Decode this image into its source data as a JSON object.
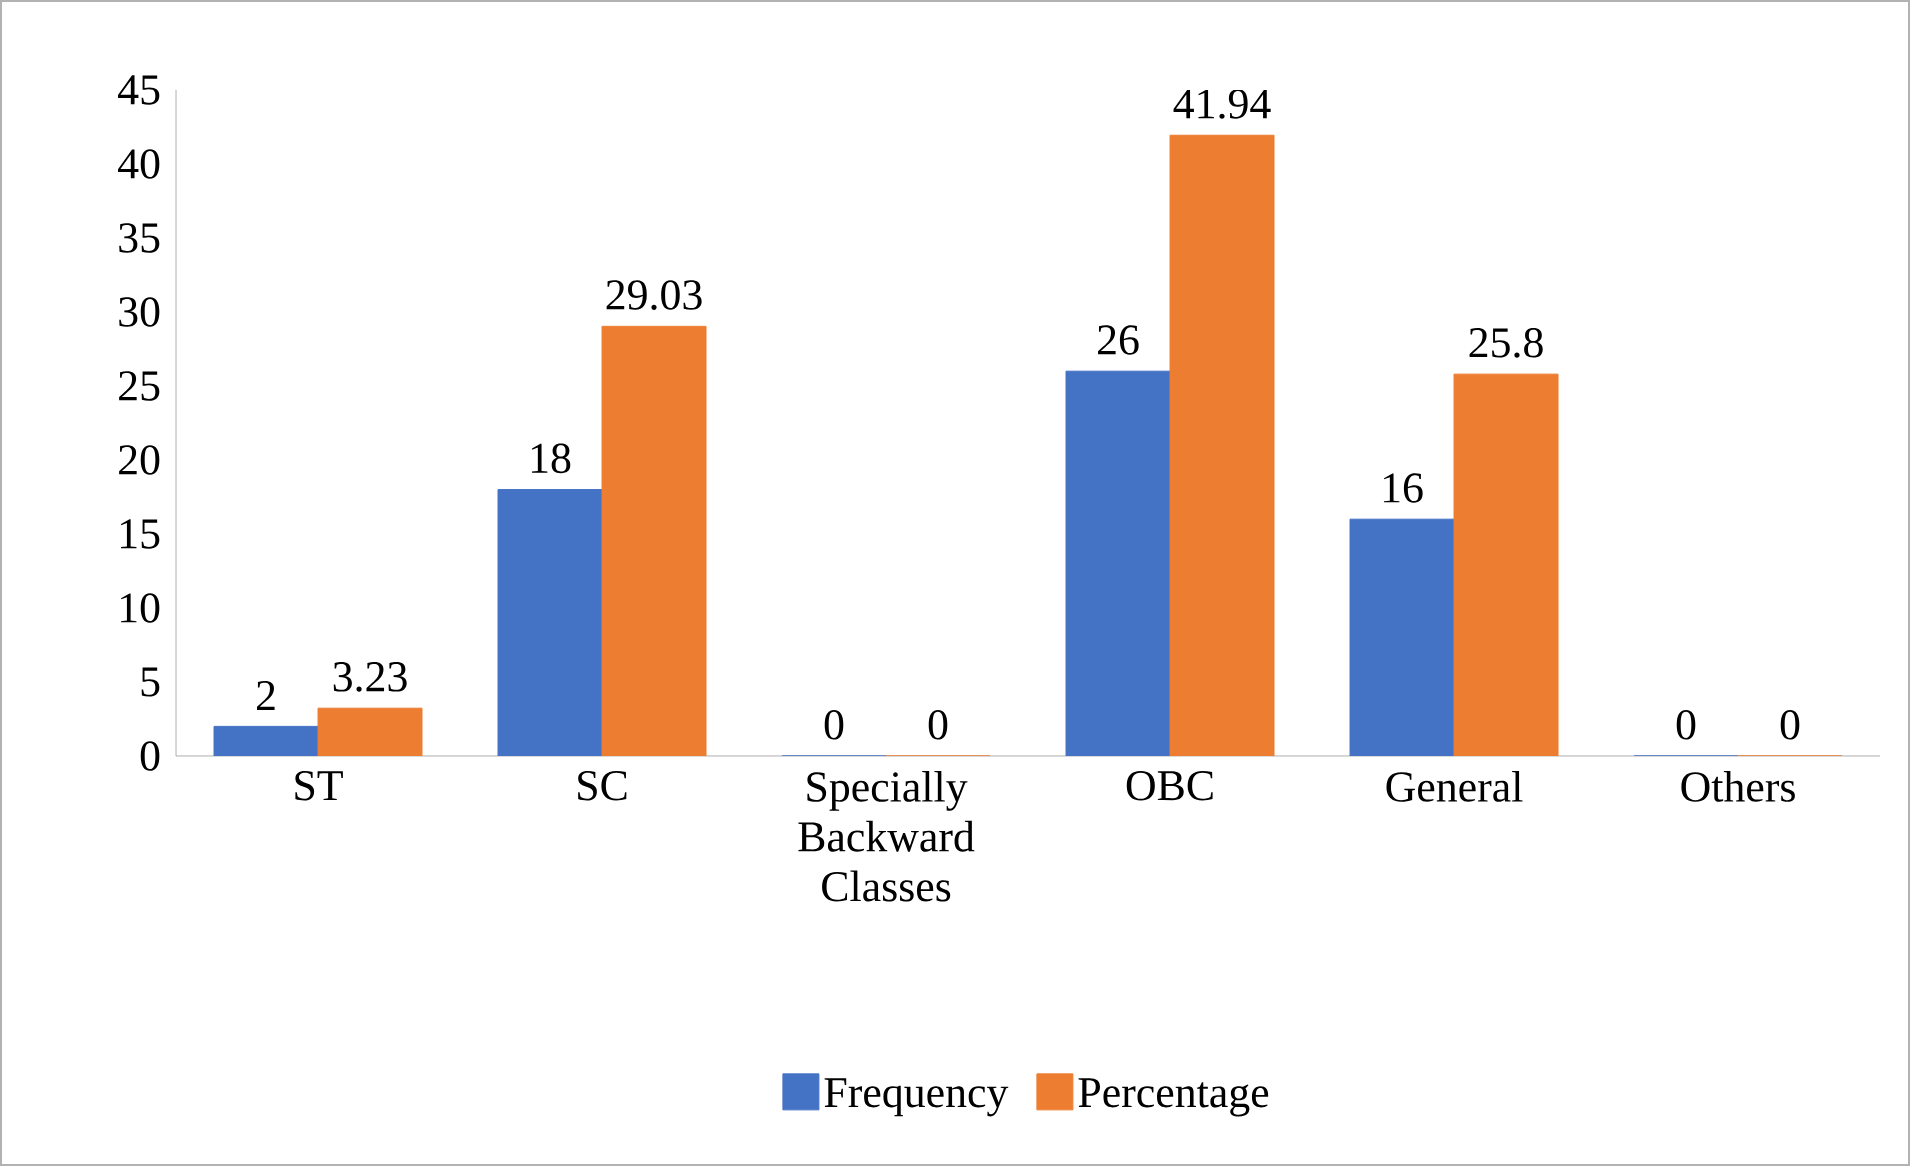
{
  "chart_data": {
    "type": "bar",
    "categories": [
      "ST",
      "SC",
      "Specially Backward Classes",
      "OBC",
      "General",
      "Others"
    ],
    "series": [
      {
        "name": "Frequency",
        "color": "#4472c4",
        "values": [
          2,
          18,
          0,
          26,
          16,
          0
        ]
      },
      {
        "name": "Percentage",
        "color": "#ed7d31",
        "values": [
          3.23,
          29.03,
          0,
          41.94,
          25.8,
          0
        ]
      }
    ],
    "ylim": [
      0,
      45
    ],
    "yticks": [
      0,
      5,
      10,
      15,
      20,
      25,
      30,
      35,
      40,
      45
    ],
    "data_labels": true,
    "legend": "bottom"
  }
}
